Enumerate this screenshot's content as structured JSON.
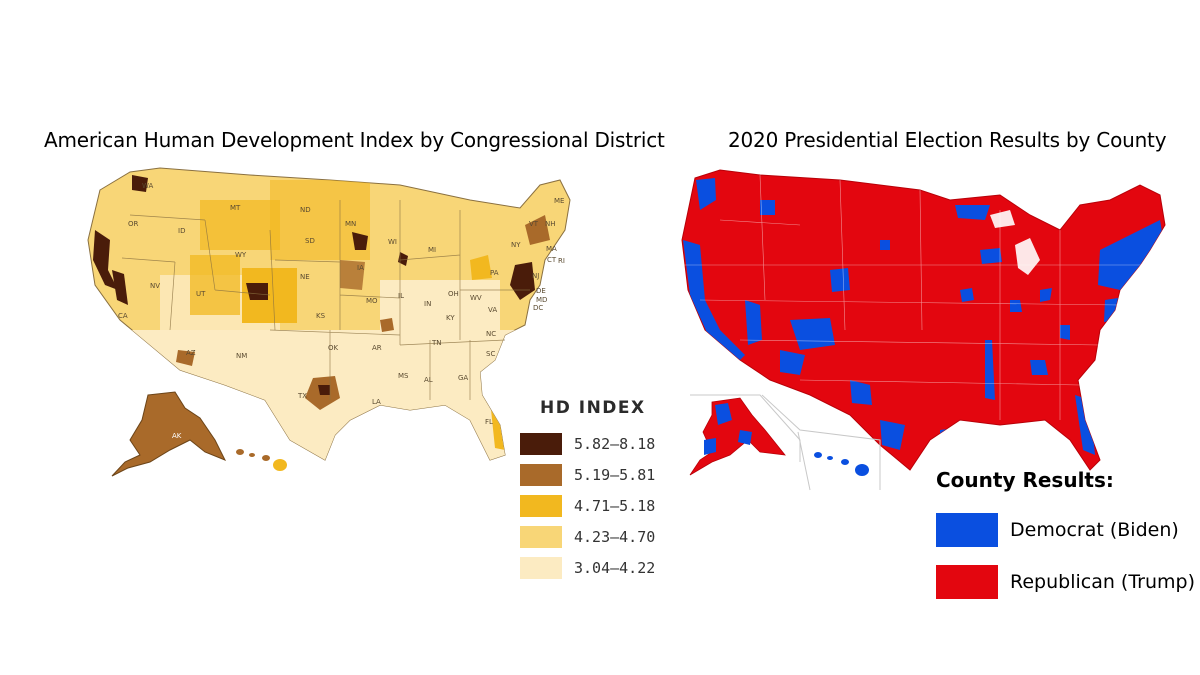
{
  "left_map": {
    "title": "American Human Development Index by Congressional District",
    "legend": {
      "title": "HD INDEX",
      "items": [
        {
          "range": "5.82–8.18",
          "color": "#4a1c0a"
        },
        {
          "range": "5.19–5.81",
          "color": "#a96a2a"
        },
        {
          "range": "4.71–5.18",
          "color": "#f2b81f"
        },
        {
          "range": "4.23–4.70",
          "color": "#f8d677"
        },
        {
          "range": "3.04–4.22",
          "color": "#fcebc2"
        }
      ]
    },
    "state_labels": [
      "WA",
      "OR",
      "CA",
      "ID",
      "NV",
      "MT",
      "WY",
      "UT",
      "CO",
      "AZ",
      "NM",
      "ND",
      "SD",
      "NE",
      "KS",
      "OK",
      "TX",
      "MN",
      "IA",
      "MO",
      "AR",
      "LA",
      "WI",
      "IL",
      "MI",
      "IN",
      "OH",
      "KY",
      "TN",
      "MS",
      "AL",
      "GA",
      "FL",
      "SC",
      "NC",
      "VA",
      "WV",
      "PA",
      "NY",
      "VT",
      "NH",
      "ME",
      "MA",
      "CT",
      "RI",
      "NJ",
      "DE",
      "MD",
      "DC",
      "AK",
      "HI"
    ]
  },
  "right_map": {
    "title": "2020 Presidential Election Results by County",
    "legend": {
      "title": "County Results:",
      "items": [
        {
          "label": "Democrat (Biden)",
          "color": "#0a4fe0"
        },
        {
          "label": "Republican (Trump)",
          "color": "#e3060f"
        }
      ]
    }
  }
}
